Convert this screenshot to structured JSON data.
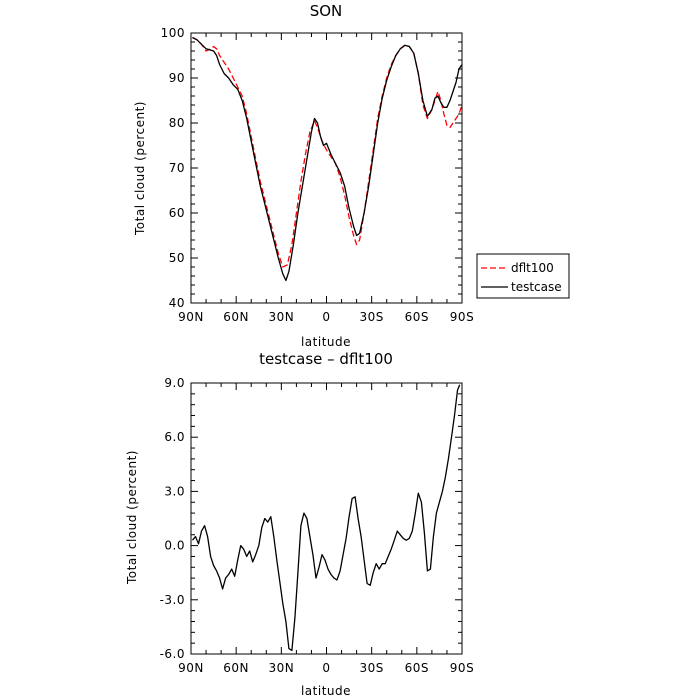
{
  "chart_data": [
    {
      "type": "line",
      "title": "SON",
      "xlabel": "latitude",
      "ylabel": "Total cloud (percent)",
      "xlim": [
        90,
        -90
      ],
      "ylim": [
        40,
        100
      ],
      "x_tick_values": [
        90,
        60,
        30,
        0,
        -30,
        -60,
        -90
      ],
      "x_tick_labels": [
        "90N",
        "60N",
        "30N",
        "0",
        "30S",
        "60S",
        "90S"
      ],
      "y_tick_values": [
        40,
        50,
        60,
        70,
        80,
        90,
        100
      ],
      "y_tick_labels": [
        "40",
        "50",
        "60",
        "70",
        "80",
        "90",
        "100"
      ],
      "legend_position": "right, below plot middle",
      "series": [
        {
          "name": "dflt100",
          "color": "#ff0000",
          "style": "dashed",
          "x": [
            89,
            86,
            83,
            80,
            77,
            75,
            73,
            71,
            68,
            65,
            62,
            59,
            56,
            53,
            50,
            47,
            44,
            41,
            38,
            35,
            32,
            29,
            26,
            23,
            20,
            17,
            14,
            11,
            8,
            6,
            3,
            0,
            -3,
            -6,
            -9,
            -12,
            -15,
            -18,
            -20,
            -22,
            -25,
            -28,
            -31,
            -34,
            -37,
            -40,
            -43,
            -46,
            -49,
            -52,
            -55,
            -58,
            -61,
            -64,
            -67,
            -70,
            -72,
            -74,
            -76,
            -78,
            -80,
            -82,
            -84,
            -86,
            -88,
            -90
          ],
          "y": [
            99,
            98.5,
            97.5,
            96,
            96.5,
            97,
            96.5,
            95,
            93.5,
            92,
            90,
            88,
            86,
            82,
            77,
            72,
            67,
            63,
            59,
            55,
            51,
            48,
            48.5,
            53,
            60,
            67,
            73,
            78,
            80.5,
            79,
            76,
            74,
            72.5,
            71,
            68,
            64,
            59,
            55,
            53,
            54,
            60,
            67,
            74,
            81,
            86,
            90,
            93,
            95,
            96.5,
            97.2,
            97,
            95.5,
            91,
            84,
            81,
            83,
            85,
            87,
            85,
            82,
            79.5,
            79,
            80,
            81,
            82,
            84
          ]
        },
        {
          "name": "testcase",
          "color": "#000000",
          "style": "solid",
          "x": [
            89,
            86,
            83,
            80,
            77,
            75,
            73,
            71,
            68,
            65,
            62,
            59,
            56,
            53,
            50,
            47,
            44,
            41,
            38,
            35,
            32,
            29,
            27,
            25,
            22,
            19,
            16,
            13,
            10,
            8,
            6,
            4,
            2,
            0,
            -3,
            -6,
            -9,
            -12,
            -15,
            -18,
            -20,
            -22,
            -25,
            -28,
            -31,
            -34,
            -37,
            -40,
            -43,
            -46,
            -49,
            -52,
            -55,
            -58,
            -61,
            -64,
            -67,
            -70,
            -72,
            -74,
            -76,
            -78,
            -80,
            -82,
            -84,
            -86,
            -88,
            -90
          ],
          "y": [
            99,
            98.5,
            97.5,
            96.5,
            96.2,
            96,
            95,
            93,
            91,
            90,
            88.5,
            87.5,
            85,
            81,
            76,
            71,
            66,
            62,
            58,
            54,
            50,
            46.5,
            45,
            47,
            53,
            60,
            66,
            72,
            78,
            81,
            80,
            77,
            75,
            75.5,
            73,
            71,
            69,
            66,
            61,
            57,
            55,
            55.5,
            60,
            66,
            73,
            80,
            85.5,
            89.5,
            92.5,
            95,
            96.5,
            97.3,
            97,
            95.5,
            91,
            85,
            81.5,
            83,
            85.5,
            86,
            84.5,
            83.5,
            83.5,
            85,
            87,
            89,
            92,
            93
          ]
        }
      ]
    },
    {
      "type": "line",
      "title": "testcase – dflt100",
      "xlabel": "latitude",
      "ylabel": "Total cloud (percent)",
      "xlim": [
        90,
        -90
      ],
      "ylim": [
        -6,
        9
      ],
      "x_tick_values": [
        90,
        60,
        30,
        0,
        -30,
        -60,
        -90
      ],
      "x_tick_labels": [
        "90N",
        "60N",
        "30N",
        "0",
        "30S",
        "60S",
        "90S"
      ],
      "y_tick_values": [
        -6,
        -3,
        0,
        3,
        6,
        9
      ],
      "y_tick_labels": [
        "-6.0",
        "-3.0",
        "0.0",
        "3.0",
        "6.0",
        "9.0"
      ],
      "series": [
        {
          "color": "#000000",
          "style": "solid",
          "x": [
            89,
            87,
            85,
            83,
            81,
            79,
            77,
            75,
            73,
            71,
            69,
            67,
            65,
            63,
            61,
            59,
            57,
            55,
            53,
            51,
            49,
            47,
            45,
            43,
            41,
            39,
            37,
            35,
            33,
            31,
            29,
            27,
            25,
            23,
            21,
            19,
            17,
            15,
            13,
            11,
            9,
            7,
            5,
            3,
            1,
            -1,
            -3,
            -5,
            -7,
            -9,
            -11,
            -13,
            -15,
            -17,
            -19,
            -21,
            -23,
            -25,
            -27,
            -29,
            -31,
            -33,
            -35,
            -37,
            -39,
            -41,
            -43,
            -45,
            -47,
            -49,
            -51,
            -53,
            -55,
            -57,
            -59,
            -61,
            -63,
            -65,
            -67,
            -69,
            -71,
            -73,
            -75,
            -77,
            -79,
            -81,
            -83,
            -85,
            -87,
            -88.5
          ],
          "y": [
            0.3,
            0.5,
            0.1,
            0.8,
            1.1,
            0.5,
            -0.6,
            -1.1,
            -1.4,
            -1.8,
            -2.4,
            -1.8,
            -1.6,
            -1.3,
            -1.7,
            -0.8,
            0,
            -0.2,
            -0.6,
            -0.3,
            -0.9,
            -0.5,
            0,
            1.0,
            1.5,
            1.3,
            1.6,
            0.5,
            -0.8,
            -2.0,
            -3.2,
            -4.2,
            -5.7,
            -5.8,
            -4.0,
            -1.5,
            1.1,
            1.8,
            1.5,
            0.5,
            -0.5,
            -1.8,
            -1.2,
            -0.5,
            -0.8,
            -1.3,
            -1.6,
            -1.8,
            -1.9,
            -1.4,
            -0.5,
            0.4,
            1.6,
            2.6,
            2.7,
            1.5,
            0.5,
            -0.8,
            -2.1,
            -2.2,
            -1.5,
            -1.0,
            -1.3,
            -1.0,
            -1.0,
            -0.6,
            -0.2,
            0.3,
            0.8,
            0.6,
            0.4,
            0.3,
            0.4,
            0.8,
            1.8,
            2.9,
            2.4,
            0.7,
            -1.4,
            -1.3,
            0.5,
            1.8,
            2.4,
            3.0,
            3.8,
            4.8,
            6.0,
            7.2,
            8.6,
            8.9
          ]
        }
      ]
    }
  ]
}
